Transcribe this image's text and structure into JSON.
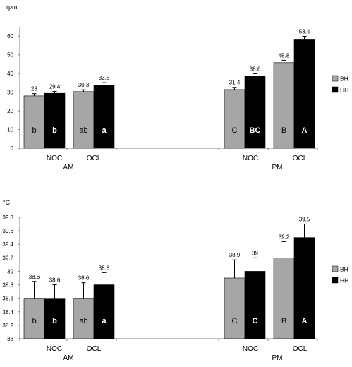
{
  "chart_data": [
    {
      "type": "bar",
      "ylabel": "rpm",
      "ylim": [
        0,
        65
      ],
      "yticks": [
        0,
        10,
        20,
        30,
        40,
        50,
        60
      ],
      "sessions": [
        "AM",
        "PM"
      ],
      "groups": [
        "NOC",
        "OCL",
        "NOC",
        "OCL"
      ],
      "series": [
        {
          "name": "BH",
          "color": "#a6a6a6",
          "values": [
            28,
            30.3,
            31.4,
            45.8
          ],
          "errors": [
            1.2,
            1.0,
            1.2,
            1.3
          ],
          "letters": [
            "b",
            "ab",
            "C",
            "B"
          ]
        },
        {
          "name": "HH",
          "color": "#000000",
          "values": [
            29.4,
            33.8,
            38.6,
            58.4
          ],
          "errors": [
            1.0,
            1.3,
            1.3,
            1.5
          ],
          "letters": [
            "b",
            "a",
            "BC",
            "A"
          ]
        }
      ],
      "value_labels": {
        "BH": [
          "28",
          "30.3",
          "31.4",
          "45.8"
        ],
        "HH": [
          "29.4",
          "33.8",
          "38.6",
          "58.4"
        ]
      },
      "legend_position": "right"
    },
    {
      "type": "bar",
      "ylabel": "°C",
      "ylim": [
        38.0,
        39.8
      ],
      "yticks": [
        "38",
        "38.2",
        "38.4",
        "38.6",
        "38.8",
        "39",
        "39.2",
        "39.4",
        "39.6",
        "39.8"
      ],
      "sessions": [
        "AM",
        "PM"
      ],
      "groups": [
        "NOC",
        "OCL",
        "NOC",
        "OCL"
      ],
      "series": [
        {
          "name": "BH",
          "color": "#a6a6a6",
          "values": [
            38.6,
            38.6,
            38.9,
            39.2
          ],
          "errors": [
            0.25,
            0.23,
            0.27,
            0.24
          ],
          "letters": [
            "b",
            "ab",
            "C",
            "B"
          ]
        },
        {
          "name": "HH",
          "color": "#000000",
          "values": [
            38.6,
            38.8,
            39.0,
            39.5
          ],
          "errors": [
            0.2,
            0.18,
            0.2,
            0.2
          ],
          "letters": [
            "b",
            "a",
            "C",
            "A"
          ]
        }
      ],
      "value_labels": {
        "BH": [
          "38.6",
          "38.6",
          "38.9",
          "39.2"
        ],
        "HH": [
          "38.6",
          "38.8",
          "39",
          "39.5"
        ]
      },
      "legend_position": "right"
    }
  ]
}
